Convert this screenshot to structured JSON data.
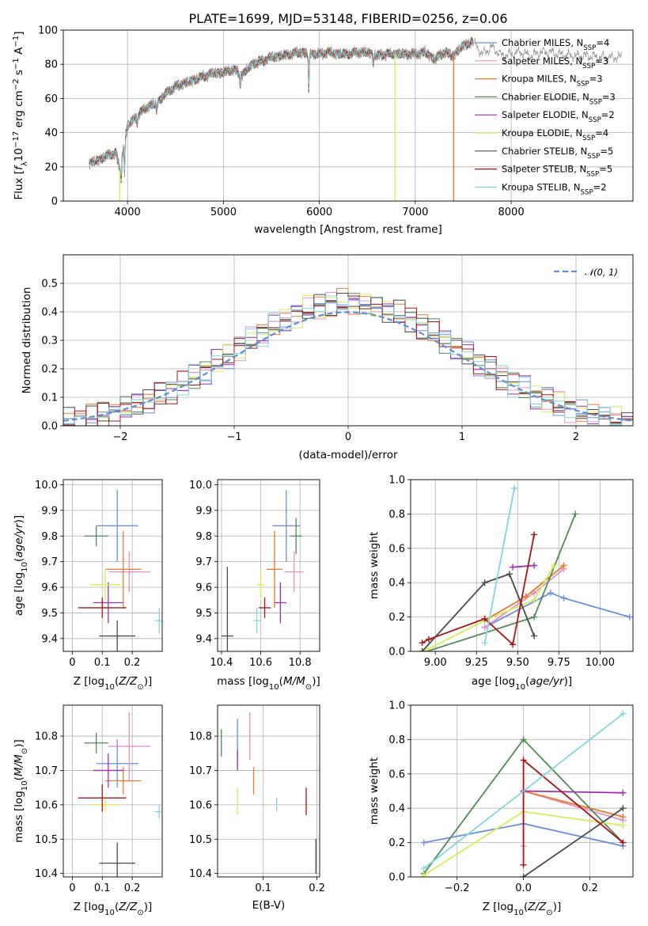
{
  "title": "PLATE=1699, MJD=53148, FIBERID=0256, z=0.06",
  "colors": {
    "Chabrier MILES": "#6a8ee0",
    "Salpeter MILES": "#e68fca",
    "Kroupa MILES": "#e87b2d",
    "Chabrier ELODIE": "#4f8a55",
    "Salpeter ELODIE": "#9b2fae",
    "Kroupa ELODIE": "#d8ec55",
    "Chabrier STELIB": "#4a4a4a",
    "Salpeter STELIB": "#a8141a",
    "Kroupa STELIB": "#7fd6dc",
    "gaussian": "#5b8fd8"
  },
  "legend1": [
    {
      "model": "Chabrier MILES",
      "nssp": "4"
    },
    {
      "model": "Salpeter MILES",
      "nssp": "3"
    },
    {
      "model": "Kroupa MILES",
      "nssp": "3"
    },
    {
      "model": "Chabrier ELODIE",
      "nssp": "3"
    },
    {
      "model": "Salpeter ELODIE",
      "nssp": "2"
    },
    {
      "model": "Kroupa ELODIE",
      "nssp": "4"
    },
    {
      "model": "Chabrier STELIB",
      "nssp": "5"
    },
    {
      "model": "Salpeter STELIB",
      "nssp": "5"
    },
    {
      "model": "Kroupa STELIB",
      "nssp": "2"
    }
  ],
  "legend_nssp_prefix": "N",
  "legend_nssp_sub": "SSP",
  "legend2": "𝒩(0, 1)",
  "chart_data": [
    {
      "id": "spectrum",
      "type": "line",
      "title": "PLATE=1699, MJD=53148, FIBERID=0256, z=0.06",
      "xlabel": "wavelength [Angstrom, rest frame]",
      "ylabel": "Flux [f_λ 10^-17 erg cm^-2 s^-1 A^-1]",
      "xlim": [
        3330,
        9270
      ],
      "ylim": [
        0,
        100
      ],
      "xticks": [
        4000,
        5000,
        6000,
        7000,
        8000
      ],
      "yticks": [
        0,
        20,
        40,
        60,
        80,
        100
      ],
      "continuum": [
        [
          3600,
          22
        ],
        [
          3700,
          24
        ],
        [
          3800,
          27
        ],
        [
          3880,
          28
        ],
        [
          3920,
          18
        ],
        [
          3960,
          32
        ],
        [
          4000,
          44
        ],
        [
          4100,
          50
        ],
        [
          4200,
          55
        ],
        [
          4300,
          57
        ],
        [
          4400,
          63
        ],
        [
          4500,
          67
        ],
        [
          4600,
          69
        ],
        [
          4700,
          71
        ],
        [
          4800,
          73
        ],
        [
          4900,
          75
        ],
        [
          5000,
          75
        ],
        [
          5100,
          77
        ],
        [
          5200,
          74
        ],
        [
          5300,
          80
        ],
        [
          5400,
          82
        ],
        [
          5500,
          84
        ],
        [
          5600,
          85
        ],
        [
          5700,
          86
        ],
        [
          5800,
          87
        ],
        [
          5900,
          86
        ],
        [
          6000,
          86
        ],
        [
          6100,
          87
        ],
        [
          6200,
          86
        ],
        [
          6300,
          86
        ],
        [
          6400,
          87
        ],
        [
          6500,
          87
        ],
        [
          6600,
          85
        ],
        [
          6700,
          86
        ],
        [
          6800,
          86
        ],
        [
          6900,
          86
        ],
        [
          7000,
          86
        ],
        [
          7100,
          87
        ],
        [
          7200,
          83
        ],
        [
          7300,
          87
        ],
        [
          7400,
          85
        ],
        [
          7500,
          91
        ],
        [
          7600,
          93
        ],
        [
          7700,
          86
        ],
        [
          7800,
          90
        ],
        [
          7900,
          85
        ],
        [
          8000,
          86
        ],
        [
          8100,
          87
        ],
        [
          8200,
          85
        ],
        [
          8300,
          87
        ],
        [
          8400,
          87
        ],
        [
          8500,
          86
        ],
        [
          8600,
          85
        ],
        [
          8700,
          85
        ],
        [
          8800,
          85
        ],
        [
          8900,
          84
        ],
        [
          9000,
          84
        ],
        [
          9100,
          84
        ]
      ],
      "absorption_features": [
        {
          "x": 3934,
          "y": 12
        },
        {
          "x": 3969,
          "y": 15
        },
        {
          "x": 4101,
          "y": 45
        },
        {
          "x": 4304,
          "y": 52
        },
        {
          "x": 5175,
          "y": 67
        },
        {
          "x": 5890,
          "y": 63
        },
        {
          "x": 6563,
          "y": 80
        }
      ],
      "model_end_wavelength": 7600,
      "dropouts": [
        {
          "x": 3920,
          "series": "Kroupa ELODIE"
        },
        {
          "x": 6790,
          "series": "Kroupa ELODIE"
        },
        {
          "x": 7400,
          "series": "Kroupa MILES"
        }
      ]
    },
    {
      "id": "residuals",
      "type": "histogram",
      "xlabel": "(data-model)/error",
      "ylabel": "Normed distribution",
      "xlim": [
        -2.5,
        2.5
      ],
      "ylim": [
        0,
        0.6
      ],
      "xticks": [
        -2,
        -1,
        0,
        1,
        2
      ],
      "yticks": [
        0.0,
        0.1,
        0.2,
        0.3,
        0.4,
        0.5
      ],
      "bin_width": 0.1,
      "reference": {
        "name": "𝒩(0, 1)",
        "mean": 0,
        "sigma": 1
      }
    },
    {
      "id": "age-vs-Z",
      "type": "errorbar",
      "xlabel": "Z [log10(Z/Z⊙)]",
      "ylabel": "age [log10(age/yr)]",
      "xlim": [
        -0.03,
        0.3
      ],
      "ylim": [
        9.35,
        10.02
      ],
      "xticks": [
        0.0,
        0.1,
        0.2
      ],
      "yticks": [
        9.4,
        9.5,
        9.6,
        9.7,
        9.8,
        9.9,
        10.0
      ],
      "points": [
        {
          "series": "Chabrier MILES",
          "x": 0.15,
          "xerr": 0.07,
          "y": 9.84,
          "yerr": 0.14
        },
        {
          "series": "Salpeter MILES",
          "x": 0.19,
          "xerr": 0.07,
          "y": 9.66,
          "yerr": 0.08
        },
        {
          "series": "Kroupa MILES",
          "x": 0.17,
          "xerr": 0.06,
          "y": 9.67,
          "yerr": 0.15
        },
        {
          "series": "Chabrier ELODIE",
          "x": 0.08,
          "xerr": 0.04,
          "y": 9.8,
          "yerr": 0.04
        },
        {
          "series": "Salpeter ELODIE",
          "x": 0.12,
          "xerr": 0.05,
          "y": 9.54,
          "yerr": 0.08
        },
        {
          "series": "Kroupa ELODIE",
          "x": 0.11,
          "xerr": 0.05,
          "y": 9.61,
          "yerr": 0.06
        },
        {
          "series": "Chabrier STELIB",
          "x": 0.15,
          "xerr": 0.06,
          "y": 9.41,
          "yerr": 0.06
        },
        {
          "series": "Salpeter STELIB",
          "x": 0.1,
          "xerr": 0.08,
          "y": 9.52,
          "yerr": 0.04
        },
        {
          "series": "Kroupa STELIB",
          "x": 0.29,
          "xerr": 0.015,
          "y": 9.47,
          "yerr": 0.05
        }
      ]
    },
    {
      "id": "age-vs-mass",
      "type": "errorbar",
      "xlabel": "mass [log10(M/M⊙)]",
      "ylabel": "",
      "xlim": [
        10.38,
        10.9
      ],
      "ylim": [
        9.35,
        10.02
      ],
      "xticks": [
        10.4,
        10.6,
        10.8
      ],
      "yticks": [
        9.4,
        9.5,
        9.6,
        9.7,
        9.8,
        9.9,
        10.0
      ],
      "points": [
        {
          "series": "Chabrier MILES",
          "x": 10.73,
          "xerr": 0.07,
          "y": 9.84,
          "yerr": 0.14
        },
        {
          "series": "Salpeter MILES",
          "x": 10.77,
          "xerr": 0.05,
          "y": 9.66,
          "yerr": 0.08
        },
        {
          "series": "Kroupa MILES",
          "x": 10.67,
          "xerr": 0.04,
          "y": 9.67,
          "yerr": 0.15
        },
        {
          "series": "Chabrier ELODIE",
          "x": 10.78,
          "xerr": 0.03,
          "y": 9.8,
          "yerr": 0.07
        },
        {
          "series": "Salpeter ELODIE",
          "x": 10.7,
          "xerr": 0.03,
          "y": 9.54,
          "yerr": 0.08
        },
        {
          "series": "Kroupa ELODIE",
          "x": 10.6,
          "xerr": 0.02,
          "y": 9.61,
          "yerr": 0.06
        },
        {
          "series": "Chabrier STELIB",
          "x": 10.43,
          "xerr": 0.03,
          "y": 9.41,
          "yerr": 0.27
        },
        {
          "series": "Salpeter STELIB",
          "x": 10.62,
          "xerr": 0.03,
          "y": 9.52,
          "yerr": 0.04
        },
        {
          "series": "Kroupa STELIB",
          "x": 10.58,
          "xerr": 0.02,
          "y": 9.47,
          "yerr": 0.05
        }
      ]
    },
    {
      "id": "massweight-vs-age",
      "type": "line",
      "xlabel": "age [log10(age/yr)]",
      "ylabel": "mass weight",
      "xlim": [
        8.85,
        10.2
      ],
      "ylim": [
        0,
        1.0
      ],
      "xticks": [
        9.0,
        9.25,
        9.5,
        9.75,
        10.0
      ],
      "yticks": [
        0.0,
        0.2,
        0.4,
        0.6,
        0.8,
        1.0
      ],
      "series": [
        {
          "name": "Chabrier MILES",
          "x": [
            9.3,
            9.7,
            9.78,
            10.18
          ],
          "y": [
            0.14,
            0.34,
            0.31,
            0.2
          ]
        },
        {
          "name": "Salpeter MILES",
          "x": [
            9.3,
            9.6,
            9.78
          ],
          "y": [
            0.14,
            0.34,
            0.48
          ]
        },
        {
          "name": "Kroupa MILES",
          "x": [
            9.3,
            9.55,
            9.78
          ],
          "y": [
            0.18,
            0.32,
            0.5
          ]
        },
        {
          "name": "Chabrier ELODIE",
          "x": [
            8.95,
            9.6,
            9.85
          ],
          "y": [
            0.0,
            0.2,
            0.8
          ]
        },
        {
          "name": "Salpeter ELODIE",
          "x": [
            9.47,
            9.6
          ],
          "y": [
            0.49,
            0.5
          ]
        },
        {
          "name": "Kroupa ELODIE",
          "x": [
            8.95,
            9.3,
            9.6,
            9.72
          ],
          "y": [
            0.01,
            0.18,
            0.3,
            0.5
          ]
        },
        {
          "name": "Chabrier STELIB",
          "x": [
            8.92,
            9.3,
            9.45,
            9.6
          ],
          "y": [
            0.0,
            0.4,
            0.45,
            0.09
          ]
        },
        {
          "name": "Salpeter STELIB",
          "x": [
            8.92,
            8.96,
            9.3,
            9.47,
            9.6
          ],
          "y": [
            0.05,
            0.07,
            0.19,
            0.04,
            0.68
          ]
        },
        {
          "name": "Kroupa STELIB",
          "x": [
            9.3,
            9.48
          ],
          "y": [
            0.05,
            0.95
          ]
        }
      ]
    },
    {
      "id": "mass-vs-Z",
      "type": "errorbar",
      "xlabel": "Z [log10(Z/Z⊙)]",
      "ylabel": "mass [log10(M/M⊙)]",
      "xlim": [
        -0.03,
        0.3
      ],
      "ylim": [
        10.39,
        10.89
      ],
      "xticks": [
        0.0,
        0.1,
        0.2
      ],
      "yticks": [
        10.4,
        10.5,
        10.6,
        10.7,
        10.8
      ],
      "points": [
        {
          "series": "Chabrier MILES",
          "x": 0.15,
          "xerr": 0.07,
          "y": 10.72,
          "yerr": 0.07
        },
        {
          "series": "Salpeter MILES",
          "x": 0.19,
          "xerr": 0.07,
          "y": 10.77,
          "yerr": 0.1
        },
        {
          "series": "Kroupa MILES",
          "x": 0.17,
          "xerr": 0.06,
          "y": 10.67,
          "yerr": 0.04
        },
        {
          "series": "Chabrier ELODIE",
          "x": 0.08,
          "xerr": 0.04,
          "y": 10.78,
          "yerr": 0.03
        },
        {
          "series": "Salpeter ELODIE",
          "x": 0.12,
          "xerr": 0.05,
          "y": 10.7,
          "yerr": 0.05
        },
        {
          "series": "Kroupa ELODIE",
          "x": 0.11,
          "xerr": 0.05,
          "y": 10.6,
          "yerr": 0.02
        },
        {
          "series": "Chabrier STELIB",
          "x": 0.15,
          "xerr": 0.06,
          "y": 10.43,
          "yerr": 0.06
        },
        {
          "series": "Salpeter STELIB",
          "x": 0.1,
          "xerr": 0.08,
          "y": 10.62,
          "yerr": 0.04
        },
        {
          "series": "Kroupa STELIB",
          "x": 0.29,
          "xerr": 0.015,
          "y": 10.58,
          "yerr": 0.02
        }
      ]
    },
    {
      "id": "mass-vs-ebv",
      "type": "errorbar",
      "xlabel": "E(B-V)",
      "ylabel": "",
      "xlim": [
        0.015,
        0.205
      ],
      "ylim": [
        10.39,
        10.89
      ],
      "xticks": [
        0.1,
        0.2
      ],
      "yticks": [
        10.4,
        10.5,
        10.6,
        10.7,
        10.8
      ],
      "points": [
        {
          "series": "Chabrier MILES",
          "x": 0.052,
          "xerr": 0,
          "y": 10.78,
          "yerr": 0.07
        },
        {
          "series": "Salpeter MILES",
          "x": 0.075,
          "xerr": 0,
          "y": 10.8,
          "yerr": 0.07
        },
        {
          "series": "Kroupa MILES",
          "x": 0.082,
          "xerr": 0,
          "y": 10.67,
          "yerr": 0.04
        },
        {
          "series": "Chabrier ELODIE",
          "x": 0.022,
          "xerr": 0,
          "y": 10.78,
          "yerr": 0.04
        },
        {
          "series": "Salpeter ELODIE",
          "x": 0.052,
          "xerr": 0,
          "y": 10.73,
          "yerr": 0.03
        },
        {
          "series": "Kroupa ELODIE",
          "x": 0.052,
          "xerr": 0,
          "y": 10.61,
          "yerr": 0.04
        },
        {
          "series": "Chabrier STELIB",
          "x": 0.198,
          "xerr": 0,
          "y": 10.45,
          "yerr": 0.05
        },
        {
          "series": "Salpeter STELIB",
          "x": 0.18,
          "xerr": 0,
          "y": 10.61,
          "yerr": 0.04
        },
        {
          "series": "Kroupa STELIB",
          "x": 0.125,
          "xerr": 0,
          "y": 10.6,
          "yerr": 0.02
        }
      ]
    },
    {
      "id": "massweight-vs-Z",
      "type": "line",
      "xlabel": "Z [log10(Z/Z⊙)]",
      "ylabel": "mass weight",
      "xlim": [
        -0.34,
        0.33
      ],
      "ylim": [
        0,
        1.0
      ],
      "xticks": [
        -0.2,
        0.0,
        0.2
      ],
      "yticks": [
        0.0,
        0.2,
        0.4,
        0.6,
        0.8,
        1.0
      ],
      "series": [
        {
          "name": "Chabrier MILES",
          "x": [
            -0.3,
            0.0,
            0.3
          ],
          "y": [
            0.2,
            0.31,
            0.18
          ]
        },
        {
          "name": "Salpeter MILES",
          "x": [
            0.0,
            0.0,
            0.3
          ],
          "y": [
            0.18,
            0.5,
            0.33
          ]
        },
        {
          "name": "Kroupa MILES",
          "x": [
            0.0,
            0.3
          ],
          "y": [
            0.5,
            0.35
          ]
        },
        {
          "name": "Chabrier ELODIE",
          "x": [
            -0.3,
            0.0,
            0.3
          ],
          "y": [
            0.02,
            0.8,
            0.2
          ]
        },
        {
          "name": "Salpeter ELODIE",
          "x": [
            0.0,
            0.3
          ],
          "y": [
            0.5,
            0.49
          ]
        },
        {
          "name": "Kroupa ELODIE",
          "x": [
            -0.3,
            0.0,
            0.3
          ],
          "y": [
            0.01,
            0.38,
            0.3
          ]
        },
        {
          "name": "Chabrier STELIB",
          "x": [
            0.0,
            0.3
          ],
          "y": [
            0.0,
            0.4
          ]
        },
        {
          "name": "Salpeter STELIB",
          "x": [
            0.0,
            0.0,
            0.3
          ],
          "y": [
            0.07,
            0.68,
            0.2
          ]
        },
        {
          "name": "Kroupa STELIB",
          "x": [
            -0.3,
            0.3
          ],
          "y": [
            0.05,
            0.95
          ]
        }
      ]
    }
  ]
}
